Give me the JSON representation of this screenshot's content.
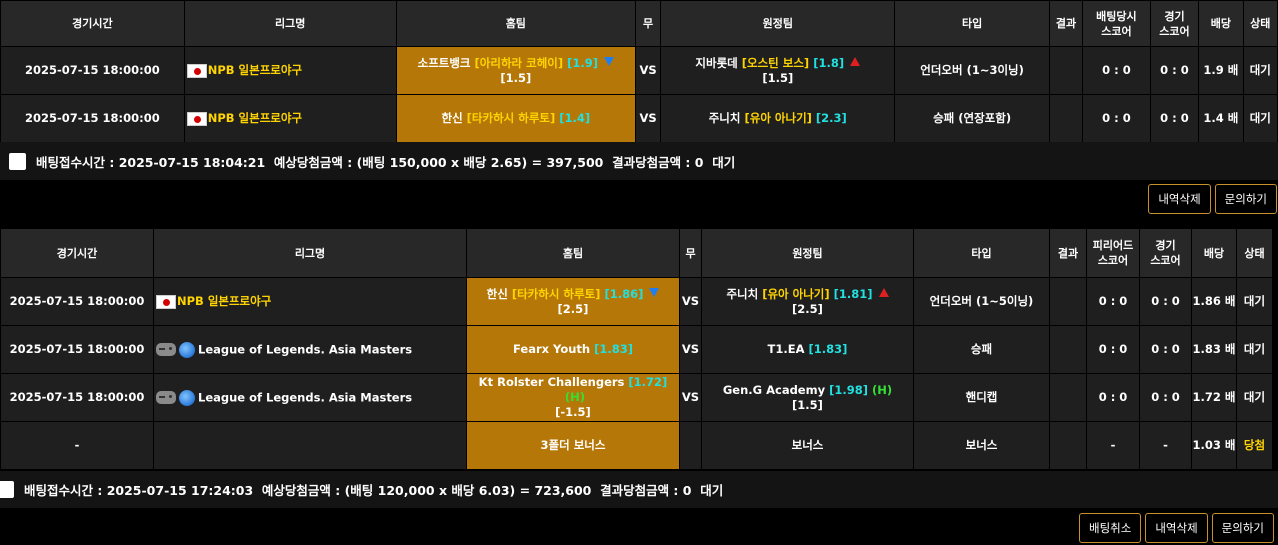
{
  "slip1": {
    "headers": [
      "경기시간",
      "리그명",
      "홈팀",
      "무",
      "원정팀",
      "타입",
      "결과",
      "배팅당시\n스코어",
      "경기\n스코어",
      "배당",
      "상태"
    ],
    "rows": [
      {
        "time": "2025-07-15 18:00:00",
        "league_icon": "baseball-icon",
        "league_flag": "japan-flag-icon",
        "league": "NPB 일본프로야구",
        "home_name": "소프트뱅크",
        "home_pitcher": "[아리하라 코헤이]",
        "home_odds": "[1.9]",
        "home_arrow": "down",
        "home_line": "[1.5]",
        "draw": "VS",
        "away_name": "지바롯데",
        "away_pitcher": "[오스틴 보스]",
        "away_odds": "[1.8]",
        "away_arrow": "up",
        "away_line": "[1.5]",
        "type": "언더오버 (1~3이닝)",
        "result": "",
        "bet_score": "0 : 0",
        "game_score": "0 : 0",
        "odds": "1.9 배",
        "status": "대기"
      },
      {
        "time": "2025-07-15 18:00:00",
        "league_icon": "baseball-icon",
        "league_flag": "japan-flag-icon",
        "league": "NPB 일본프로야구",
        "home_name": "한신",
        "home_pitcher": "[타카하시 하루토]",
        "home_odds": "[1.4]",
        "home_arrow": "",
        "home_line": "",
        "draw": "VS",
        "away_name": "주니치",
        "away_pitcher": "[유아 아나기]",
        "away_odds": "[2.3]",
        "away_arrow": "",
        "away_line": "",
        "type": "승패 (연장포함)",
        "result": "",
        "bet_score": "0 : 0",
        "game_score": "0 : 0",
        "odds": "1.4 배",
        "status": "대기"
      }
    ],
    "info": "배팅접수시간 : 2025-07-15 18:04:21  예상당첨금액 : (배팅 150,000 x 배당 2.65) = 397,500  결과당첨금액 : 0  대기",
    "buttons": [
      "내역삭제",
      "문의하기"
    ]
  },
  "slip2": {
    "headers": [
      "경기시간",
      "리그명",
      "홈팀",
      "무",
      "원정팀",
      "타입",
      "결과",
      "피리어드\n스코어",
      "경기\n스코어",
      "배당",
      "상태"
    ],
    "rows": [
      {
        "time": "2025-07-15 18:00:00",
        "league_icon": "baseball-icon",
        "league_flag": "japan-flag-icon",
        "league": "NPB 일본프로야구",
        "home_name": "한신",
        "home_pitcher": "[타카하시 하루토]",
        "home_odds": "[1.86]",
        "home_arrow": "down",
        "home_line": "[2.5]",
        "home_h": "",
        "draw": "VS",
        "away_name": "주니치",
        "away_pitcher": "[유아 아나기]",
        "away_odds": "[1.81]",
        "away_arrow": "up",
        "away_line": "[2.5]",
        "away_h": "",
        "type": "언더오버 (1~5이닝)",
        "result": "",
        "bet_score": "0 : 0",
        "game_score": "0 : 0",
        "odds": "1.86 배",
        "status": "대기"
      },
      {
        "time": "2025-07-15 18:00:00",
        "league_icon": "gamepad-icon",
        "league_flag": "globe-icon",
        "league": "League of Legends. Asia Masters",
        "home_name": "Fearx Youth",
        "home_pitcher": "",
        "home_odds": "[1.83]",
        "home_arrow": "",
        "home_line": "",
        "home_h": "",
        "draw": "VS",
        "away_name": "T1.EA",
        "away_pitcher": "",
        "away_odds": "[1.83]",
        "away_arrow": "",
        "away_line": "",
        "away_h": "",
        "type": "승패",
        "result": "",
        "bet_score": "0 : 0",
        "game_score": "0 : 0",
        "odds": "1.83 배",
        "status": "대기"
      },
      {
        "time": "2025-07-15 18:00:00",
        "league_icon": "gamepad-icon",
        "league_flag": "globe-icon",
        "league": "League of Legends. Asia Masters",
        "home_name": "Kt Rolster Challengers",
        "home_pitcher": "",
        "home_odds": "[1.72]",
        "home_arrow": "",
        "home_line": "[-1.5]",
        "home_h": "(H)",
        "draw": "VS",
        "away_name": "Gen.G Academy",
        "away_pitcher": "",
        "away_odds": "[1.98]",
        "away_arrow": "",
        "away_line": "[1.5]",
        "away_h": "(H)",
        "type": "핸디캡",
        "result": "",
        "bet_score": "0 : 0",
        "game_score": "0 : 0",
        "odds": "1.72 배",
        "status": "대기"
      },
      {
        "time": "-",
        "league_icon": "",
        "league_flag": "",
        "league": "",
        "home_name": "3폴더 보너스",
        "home_pitcher": "",
        "home_odds": "",
        "home_arrow": "",
        "home_line": "",
        "home_h": "",
        "draw": "",
        "away_name": "보너스",
        "away_pitcher": "",
        "away_odds": "",
        "away_arrow": "",
        "away_line": "",
        "away_h": "",
        "type": "보너스",
        "result": "",
        "bet_score": "-",
        "game_score": "-",
        "odds": "1.03 배",
        "status": "당첨"
      }
    ],
    "info": "배팅접수시간 : 2025-07-15 17:24:03  예상당첨금액 : (배팅 120,000 x 배당 6.03) = 723,600  결과당첨금액 : 0  대기",
    "buttons": [
      "배팅취소",
      "내역삭제",
      "문의하기"
    ]
  }
}
